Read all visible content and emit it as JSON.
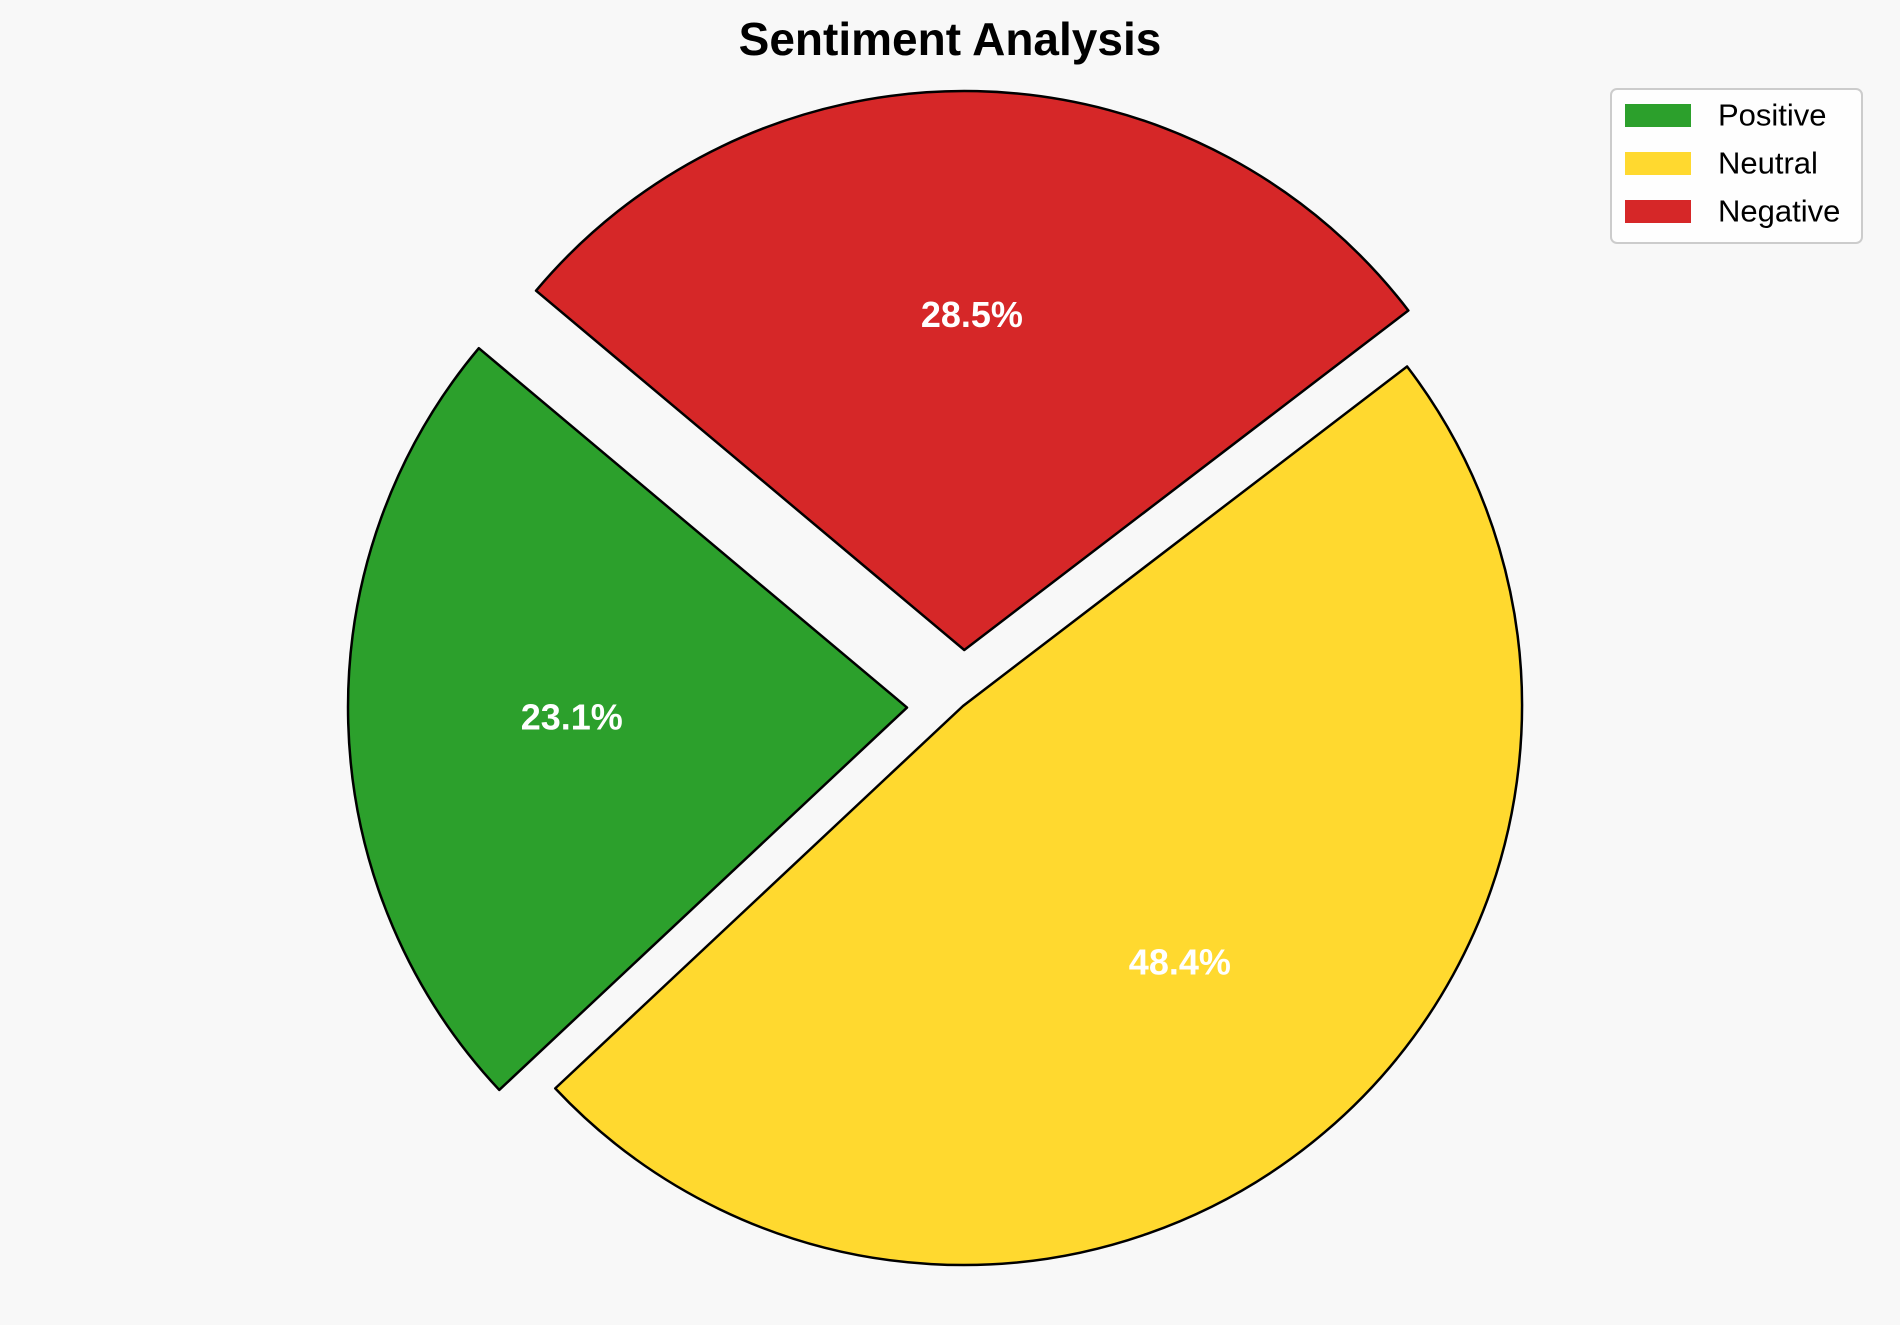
{
  "chart_data": {
    "type": "pie",
    "title": "Sentiment Analysis",
    "categories": [
      "Positive",
      "Neutral",
      "Negative"
    ],
    "values": [
      23.1,
      48.4,
      28.5
    ],
    "labels": [
      "23.1%",
      "48.4%",
      "28.5%"
    ],
    "colors": [
      "#2ca02c",
      "#ffd92f",
      "#d62728"
    ],
    "exploded": [
      true,
      false,
      true
    ],
    "legend_position": "top-right"
  }
}
